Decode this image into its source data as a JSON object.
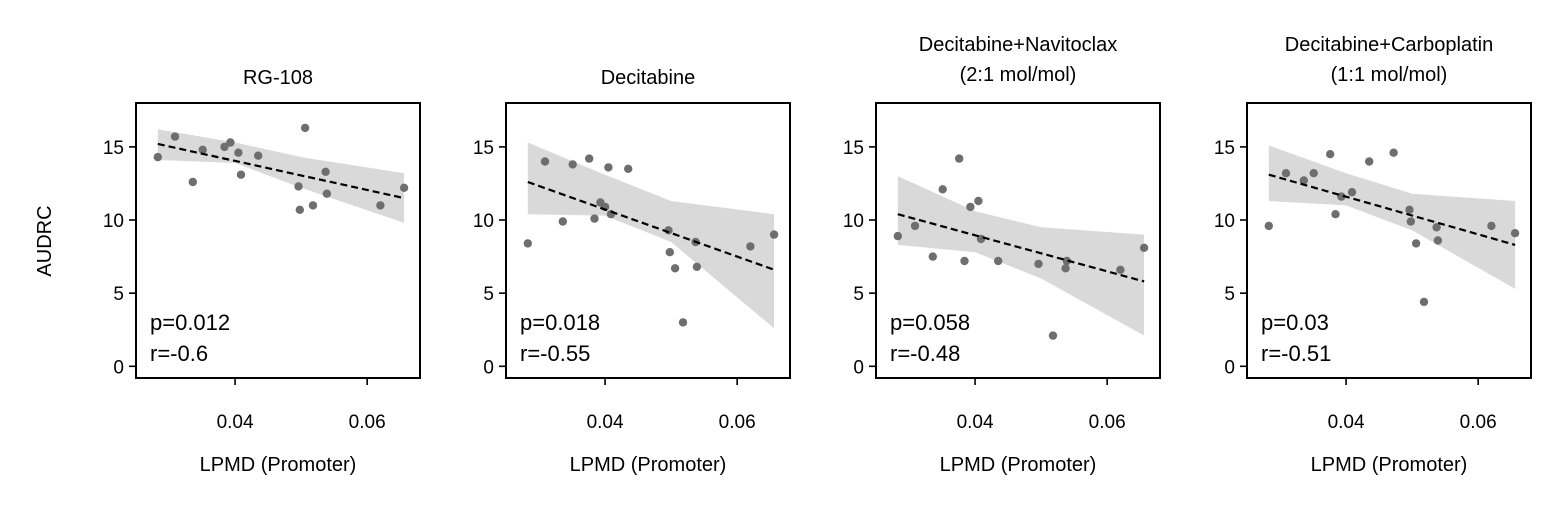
{
  "chart_data": [
    {
      "type": "scatter",
      "title": [
        "RG-108"
      ],
      "xlabel": "LPMD (Promoter)",
      "ylabel": "AUDRC",
      "xlim": [
        0.025,
        0.068
      ],
      "ylim": [
        -0.8,
        18
      ],
      "xticks": [
        0.04,
        0.06
      ],
      "xtick_labels": [
        "0.04",
        "0.06"
      ],
      "yticks": [
        0,
        5,
        10,
        15
      ],
      "ytick_labels": [
        "0",
        "5",
        "10",
        "15"
      ],
      "points": [
        {
          "x": 0.0283,
          "y": 14.3
        },
        {
          "x": 0.0309,
          "y": 15.7
        },
        {
          "x": 0.0336,
          "y": 12.6
        },
        {
          "x": 0.0351,
          "y": 14.8
        },
        {
          "x": 0.0384,
          "y": 15.0
        },
        {
          "x": 0.0393,
          "y": 15.3
        },
        {
          "x": 0.0405,
          "y": 14.6
        },
        {
          "x": 0.0409,
          "y": 13.1
        },
        {
          "x": 0.0435,
          "y": 14.4
        },
        {
          "x": 0.0496,
          "y": 12.3
        },
        {
          "x": 0.0498,
          "y": 10.7
        },
        {
          "x": 0.0506,
          "y": 16.3
        },
        {
          "x": 0.0518,
          "y": 11.0
        },
        {
          "x": 0.0537,
          "y": 13.3
        },
        {
          "x": 0.0539,
          "y": 11.8
        },
        {
          "x": 0.062,
          "y": 11.0
        },
        {
          "x": 0.0656,
          "y": 12.2
        }
      ],
      "fit": {
        "x": [
          0.0283,
          0.0656
        ],
        "y": [
          15.2,
          11.5
        ]
      },
      "ci": {
        "x": [
          0.0283,
          0.04,
          0.05,
          0.0656
        ],
        "upper": [
          16.2,
          15.3,
          14.3,
          13.2
        ],
        "lower": [
          14.1,
          13.9,
          12.2,
          9.8
        ]
      },
      "stats": [
        "p=0.012",
        "r=-0.6"
      ]
    },
    {
      "type": "scatter",
      "title": [
        "Decitabine"
      ],
      "xlabel": "LPMD (Promoter)",
      "ylabel": "",
      "xlim": [
        0.025,
        0.068
      ],
      "ylim": [
        -0.8,
        18
      ],
      "xticks": [
        0.04,
        0.06
      ],
      "xtick_labels": [
        "0.04",
        "0.06"
      ],
      "yticks": [
        0,
        5,
        10,
        15
      ],
      "ytick_labels": [
        "0",
        "5",
        "10",
        "15"
      ],
      "points": [
        {
          "x": 0.0283,
          "y": 8.4
        },
        {
          "x": 0.0309,
          "y": 14.0
        },
        {
          "x": 0.0336,
          "y": 9.9
        },
        {
          "x": 0.0351,
          "y": 13.8
        },
        {
          "x": 0.0376,
          "y": 14.2
        },
        {
          "x": 0.0384,
          "y": 10.1
        },
        {
          "x": 0.0393,
          "y": 11.2
        },
        {
          "x": 0.04,
          "y": 10.9
        },
        {
          "x": 0.0405,
          "y": 13.6
        },
        {
          "x": 0.0409,
          "y": 10.4
        },
        {
          "x": 0.0435,
          "y": 13.5
        },
        {
          "x": 0.0496,
          "y": 9.3
        },
        {
          "x": 0.0498,
          "y": 7.8
        },
        {
          "x": 0.0506,
          "y": 6.7
        },
        {
          "x": 0.0518,
          "y": 3.0
        },
        {
          "x": 0.0537,
          "y": 8.5
        },
        {
          "x": 0.0539,
          "y": 6.8
        },
        {
          "x": 0.062,
          "y": 8.2
        },
        {
          "x": 0.0656,
          "y": 9.0
        }
      ],
      "fit": {
        "x": [
          0.0283,
          0.0656
        ],
        "y": [
          12.6,
          6.6
        ]
      },
      "ci": {
        "x": [
          0.0283,
          0.04,
          0.05,
          0.0656
        ],
        "upper": [
          15.3,
          13.1,
          11.3,
          10.4
        ],
        "lower": [
          10.4,
          10.3,
          8.5,
          2.6
        ]
      },
      "stats": [
        "p=0.018",
        "r=-0.55"
      ]
    },
    {
      "type": "scatter",
      "title": [
        "Decitabine+Navitoclax",
        "(2:1 mol/mol)"
      ],
      "xlabel": "LPMD (Promoter)",
      "ylabel": "",
      "xlim": [
        0.025,
        0.068
      ],
      "ylim": [
        -0.8,
        18
      ],
      "xticks": [
        0.04,
        0.06
      ],
      "xtick_labels": [
        "0.04",
        "0.06"
      ],
      "yticks": [
        0,
        5,
        10,
        15
      ],
      "ytick_labels": [
        "0",
        "5",
        "10",
        "15"
      ],
      "points": [
        {
          "x": 0.0283,
          "y": 8.9
        },
        {
          "x": 0.0309,
          "y": 9.6
        },
        {
          "x": 0.0336,
          "y": 7.5
        },
        {
          "x": 0.0351,
          "y": 12.1
        },
        {
          "x": 0.0376,
          "y": 14.2
        },
        {
          "x": 0.0384,
          "y": 7.2
        },
        {
          "x": 0.0393,
          "y": 10.9
        },
        {
          "x": 0.0405,
          "y": 11.3
        },
        {
          "x": 0.0409,
          "y": 8.7
        },
        {
          "x": 0.0435,
          "y": 7.2
        },
        {
          "x": 0.0496,
          "y": 7.0
        },
        {
          "x": 0.0518,
          "y": 2.1
        },
        {
          "x": 0.0537,
          "y": 6.7
        },
        {
          "x": 0.0539,
          "y": 7.2
        },
        {
          "x": 0.062,
          "y": 6.6
        },
        {
          "x": 0.0656,
          "y": 8.1
        }
      ],
      "fit": {
        "x": [
          0.0283,
          0.0656
        ],
        "y": [
          10.4,
          5.8
        ]
      },
      "ci": {
        "x": [
          0.0283,
          0.04,
          0.05,
          0.0656
        ],
        "upper": [
          13.0,
          10.6,
          9.5,
          9.0
        ],
        "lower": [
          8.3,
          7.8,
          6.0,
          2.1
        ]
      },
      "stats": [
        "p=0.058",
        "r=-0.48"
      ]
    },
    {
      "type": "scatter",
      "title": [
        "Decitabine+Carboplatin",
        "(1:1 mol/mol)"
      ],
      "xlabel": "LPMD (Promoter)",
      "ylabel": "",
      "xlim": [
        0.025,
        0.068
      ],
      "ylim": [
        -0.8,
        18
      ],
      "xticks": [
        0.04,
        0.06
      ],
      "xtick_labels": [
        "0.04",
        "0.06"
      ],
      "yticks": [
        0,
        5,
        10,
        15
      ],
      "ytick_labels": [
        "0",
        "5",
        "10",
        "15"
      ],
      "points": [
        {
          "x": 0.0283,
          "y": 9.6
        },
        {
          "x": 0.0309,
          "y": 13.2
        },
        {
          "x": 0.0336,
          "y": 12.7
        },
        {
          "x": 0.0351,
          "y": 13.2
        },
        {
          "x": 0.0376,
          "y": 14.5
        },
        {
          "x": 0.0384,
          "y": 10.4
        },
        {
          "x": 0.0393,
          "y": 11.6
        },
        {
          "x": 0.0409,
          "y": 11.9
        },
        {
          "x": 0.0435,
          "y": 14.0
        },
        {
          "x": 0.0472,
          "y": 14.6
        },
        {
          "x": 0.0496,
          "y": 10.7
        },
        {
          "x": 0.0498,
          "y": 9.9
        },
        {
          "x": 0.0506,
          "y": 8.4
        },
        {
          "x": 0.0518,
          "y": 4.4
        },
        {
          "x": 0.0537,
          "y": 9.5
        },
        {
          "x": 0.0539,
          "y": 8.6
        },
        {
          "x": 0.062,
          "y": 9.6
        },
        {
          "x": 0.0656,
          "y": 9.1
        }
      ],
      "fit": {
        "x": [
          0.0283,
          0.0656
        ],
        "y": [
          13.1,
          8.3
        ]
      },
      "ci": {
        "x": [
          0.0283,
          0.04,
          0.05,
          0.0656
        ],
        "upper": [
          15.1,
          13.2,
          11.8,
          11.3
        ],
        "lower": [
          11.3,
          11.0,
          9.3,
          5.3
        ]
      },
      "stats": [
        "p=0.03",
        "r=-0.51"
      ]
    }
  ],
  "style": {
    "point_color": "#6e6e6e",
    "fit_color": "#000000",
    "band_color": "#d9d9d9",
    "axis_color": "#000000"
  }
}
